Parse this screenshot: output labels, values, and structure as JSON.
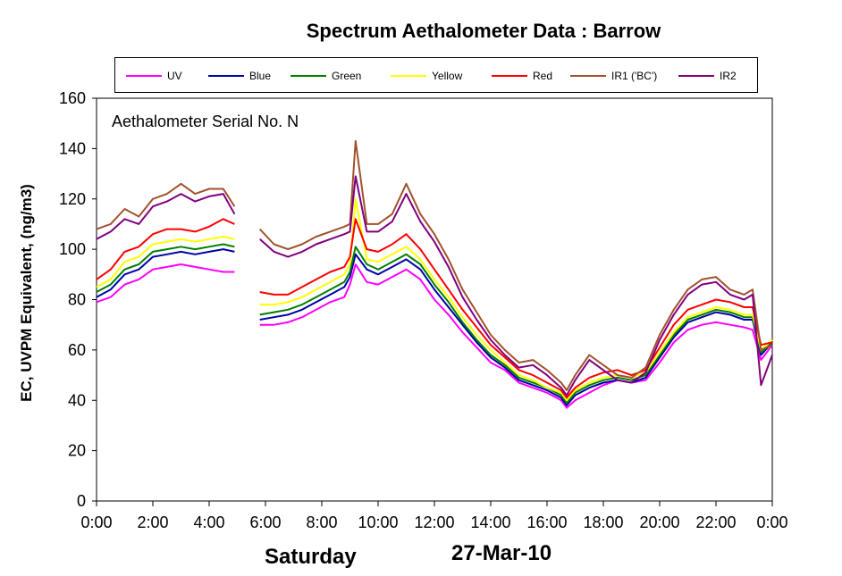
{
  "chart_data": {
    "type": "line",
    "title": "Spectrum Aethalometer Data  :  Barrow",
    "annotation": "Aethalometer  Serial No. N",
    "xlabel": "",
    "ylabel": "EC, UVPM Equivalent, (ng/m3)",
    "footer_day": "Saturday",
    "footer_date": "27-Mar-10",
    "ylim": [
      0,
      160
    ],
    "xlim": [
      0,
      24
    ],
    "y_ticks": [
      0,
      20,
      40,
      60,
      80,
      100,
      120,
      140,
      160
    ],
    "x_ticks": [
      "0:00",
      "2:00",
      "4:00",
      "6:00",
      "8:00",
      "10:00",
      "12:00",
      "14:00",
      "16:00",
      "18:00",
      "20:00",
      "22:00",
      "0:00"
    ],
    "grid": false,
    "legend_position": "top",
    "x_hours": [
      0,
      0.5,
      1,
      1.5,
      2,
      2.5,
      3,
      3.5,
      4,
      4.5,
      4.9,
      5.3,
      5.8,
      6.3,
      6.8,
      7.3,
      7.8,
      8.3,
      8.8,
      9.0,
      9.2,
      9.6,
      10.0,
      10.5,
      11.0,
      11.5,
      12.0,
      12.5,
      13.0,
      13.5,
      14.0,
      14.5,
      15.0,
      15.5,
      16.0,
      16.5,
      16.7,
      17.0,
      17.5,
      18.0,
      18.5,
      19.0,
      19.5,
      20.0,
      20.5,
      21.0,
      21.5,
      22.0,
      22.5,
      23.0,
      23.3,
      23.6,
      24.0
    ],
    "series": [
      {
        "name": "UV",
        "color": "#ff00ff",
        "values": [
          79,
          81,
          86,
          88,
          92,
          93,
          94,
          93,
          92,
          91,
          91,
          null,
          70,
          70,
          71,
          73,
          76,
          79,
          81,
          86,
          94,
          87,
          86,
          89,
          92,
          88,
          80,
          74,
          67,
          61,
          55,
          52,
          47,
          45,
          43,
          40,
          37,
          40,
          43,
          46,
          48,
          47,
          48,
          55,
          63,
          68,
          70,
          71,
          70,
          69,
          68,
          56,
          62
        ]
      },
      {
        "name": "Blue",
        "color": "#0000aa",
        "values": [
          81,
          84,
          90,
          92,
          97,
          98,
          99,
          98,
          99,
          100,
          99,
          null,
          72,
          73,
          74,
          76,
          79,
          82,
          85,
          89,
          98,
          92,
          90,
          93,
          96,
          92,
          84,
          77,
          70,
          63,
          57,
          53,
          48,
          46,
          44,
          41,
          38,
          42,
          45,
          47,
          48,
          47,
          49,
          57,
          65,
          71,
          73,
          75,
          74,
          72,
          72,
          58,
          63
        ]
      },
      {
        "name": "Green",
        "color": "#008000",
        "values": [
          83,
          86,
          92,
          94,
          99,
          100,
          101,
          100,
          101,
          102,
          101,
          null,
          74,
          75,
          76,
          78,
          81,
          84,
          87,
          91,
          101,
          94,
          92,
          95,
          98,
          94,
          86,
          79,
          71,
          64,
          58,
          54,
          49,
          47,
          45,
          42,
          39,
          43,
          46,
          48,
          49,
          48,
          50,
          58,
          66,
          72,
          74,
          76,
          75,
          73,
          73,
          59,
          63
        ]
      },
      {
        "name": "Yellow",
        "color": "#ffff00",
        "values": [
          85,
          88,
          95,
          97,
          102,
          103,
          104,
          103,
          104,
          105,
          104,
          null,
          78,
          78,
          79,
          81,
          84,
          87,
          90,
          94,
          120,
          96,
          95,
          98,
          101,
          96,
          88,
          81,
          73,
          66,
          60,
          55,
          50,
          48,
          45,
          43,
          40,
          44,
          47,
          49,
          50,
          49,
          51,
          59,
          67,
          73,
          75,
          77,
          76,
          74,
          74,
          60,
          64
        ]
      },
      {
        "name": "Red",
        "color": "#ff0000",
        "values": [
          88,
          92,
          99,
          101,
          106,
          108,
          108,
          107,
          109,
          112,
          110,
          null,
          83,
          82,
          82,
          85,
          88,
          91,
          93,
          97,
          112,
          100,
          99,
          102,
          106,
          100,
          92,
          84,
          76,
          69,
          62,
          57,
          52,
          50,
          47,
          44,
          41,
          45,
          49,
          51,
          52,
          50,
          52,
          61,
          70,
          76,
          78,
          80,
          79,
          77,
          77,
          62,
          63
        ]
      },
      {
        "name": "IR1 ('BC')",
        "color": "#a0522d",
        "values": [
          108,
          110,
          116,
          113,
          120,
          122,
          126,
          122,
          124,
          124,
          117,
          null,
          108,
          102,
          100,
          102,
          105,
          107,
          109,
          110,
          143,
          110,
          110,
          114,
          126,
          114,
          106,
          96,
          84,
          75,
          66,
          60,
          55,
          56,
          52,
          47,
          44,
          50,
          58,
          54,
          50,
          49,
          53,
          66,
          76,
          84,
          88,
          89,
          84,
          82,
          84,
          60,
          62
        ]
      },
      {
        "name": "IR2",
        "color": "#800080",
        "values": [
          104,
          107,
          112,
          110,
          117,
          119,
          122,
          119,
          121,
          122,
          114,
          null,
          104,
          99,
          97,
          99,
          102,
          104,
          106,
          107,
          129,
          107,
          107,
          111,
          122,
          111,
          103,
          93,
          81,
          72,
          64,
          58,
          53,
          54,
          50,
          45,
          42,
          48,
          56,
          52,
          48,
          47,
          51,
          64,
          74,
          82,
          86,
          87,
          82,
          80,
          82,
          46,
          58
        ]
      }
    ]
  }
}
